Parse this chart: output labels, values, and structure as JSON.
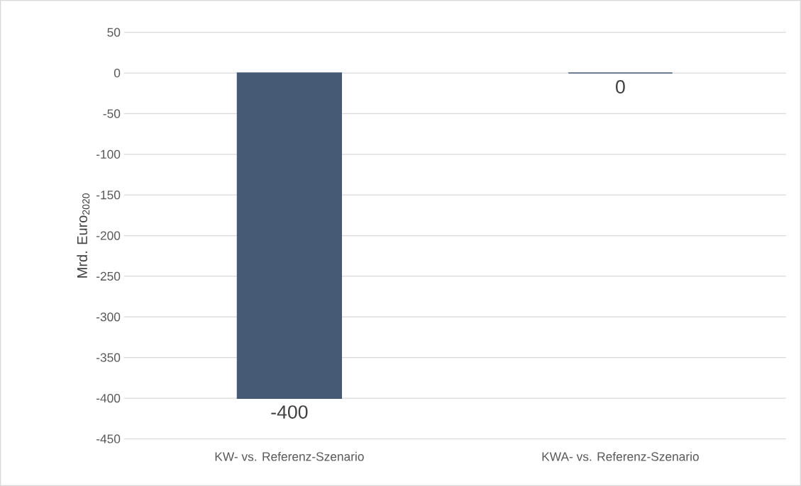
{
  "chart_data": {
    "type": "bar",
    "categories": [
      "KW- vs. Referenz-Szenario",
      "KWA- vs. Referenz-Szenario"
    ],
    "values": [
      -400,
      0
    ],
    "color": "#475a75",
    "ylabel": "Mrd. Euro$_{2020}$",
    "ylim": [
      -450,
      50
    ],
    "yticks": [
      -450,
      -400,
      -350,
      -300,
      -250,
      -200,
      -150,
      -100,
      -50,
      0,
      50
    ],
    "grid": "y",
    "data_labels": true
  }
}
